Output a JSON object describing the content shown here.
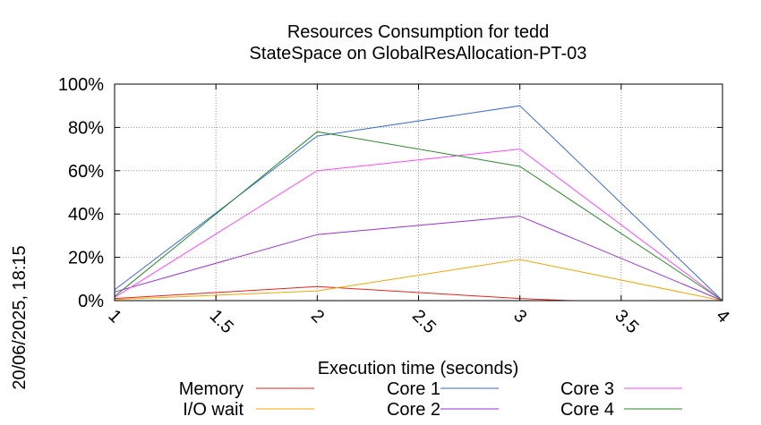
{
  "chart_data": {
    "type": "line",
    "title": "Resources Consumption for tedd",
    "subtitle": "StateSpace on GlobalResAllocation-PT-03",
    "xlabel": "Execution time (seconds)",
    "ylabel": "",
    "xlim": [
      1,
      4
    ],
    "ylim": [
      0,
      100
    ],
    "x_ticks": [
      "1",
      "1.5",
      "2",
      "2.5",
      "3",
      "3.5",
      "4"
    ],
    "y_ticks": [
      "0%",
      "20%",
      "40%",
      "60%",
      "80%",
      "100%"
    ],
    "grid": true,
    "timestamp": "20/06/2025, 18:15",
    "series": [
      {
        "name": "Memory",
        "color": "#e8231b",
        "x": [
          1,
          2,
          3,
          3.25
        ],
        "y": [
          1,
          6.5,
          1,
          0
        ]
      },
      {
        "name": "I/O wait",
        "color": "#f5a500",
        "x": [
          1,
          2,
          3,
          4
        ],
        "y": [
          0.5,
          4.5,
          19,
          0
        ]
      },
      {
        "name": "Core 1",
        "color": "#3a6ad8",
        "x": [
          1,
          2,
          3,
          4
        ],
        "y": [
          5,
          76,
          90,
          0
        ]
      },
      {
        "name": "Core 2",
        "color": "#9a2ee0",
        "x": [
          1,
          2,
          3,
          4
        ],
        "y": [
          4,
          30.5,
          39,
          0
        ]
      },
      {
        "name": "Core 3",
        "color": "#ff44ff",
        "x": [
          1,
          2,
          3,
          4
        ],
        "y": [
          1.5,
          60,
          70,
          0
        ]
      },
      {
        "name": "Core 4",
        "color": "#2a8a2a",
        "x": [
          1,
          2,
          3,
          4
        ],
        "y": [
          2,
          78,
          62,
          0
        ]
      }
    ]
  }
}
